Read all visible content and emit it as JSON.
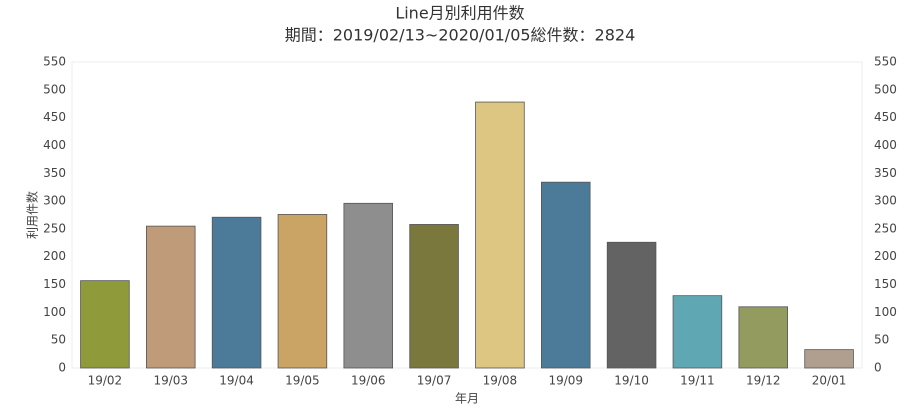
{
  "chart_data": {
    "type": "bar",
    "title": "Line月別利用件数",
    "subtitle": "期間：2019/02/13~2020/01/05総件数：2824",
    "x_label": "年月",
    "y_label": "利用件数",
    "categories": [
      "19/02",
      "19/03",
      "19/04",
      "19/05",
      "19/06",
      "19/07",
      "19/08",
      "19/09",
      "19/10",
      "19/11",
      "19/12",
      "20/01"
    ],
    "values": [
      157,
      255,
      271,
      276,
      296,
      258,
      478,
      334,
      226,
      130,
      110,
      33
    ],
    "colors": [
      "#8f9a3b",
      "#bf9b7a",
      "#4c7a99",
      "#c9a464",
      "#8e8e8e",
      "#7a783c",
      "#dcc682",
      "#4b7b99",
      "#636363",
      "#5fa8b3",
      "#949b5e",
      "#b09e8e"
    ],
    "ylim": [
      0,
      550
    ],
    "yticks": [
      0,
      50,
      100,
      150,
      200,
      250,
      300,
      350,
      400,
      450,
      500,
      550
    ],
    "y2lim": [
      0,
      550
    ],
    "y2ticks": [
      0,
      50,
      100,
      150,
      200,
      250,
      300,
      350,
      400,
      450,
      500,
      550
    ],
    "grid": false
  }
}
